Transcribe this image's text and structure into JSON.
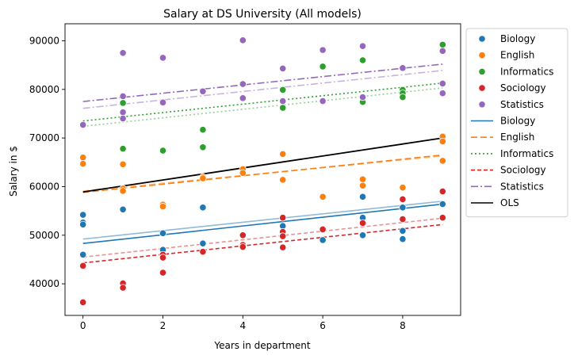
{
  "chart_data": {
    "type": "scatter",
    "title": "Salary at DS University (All models)",
    "xlabel": "Years in department",
    "ylabel": "Salary in $",
    "xlim": [
      -0.45,
      9.45
    ],
    "ylim": [
      33500,
      93500
    ],
    "xticks": [
      0,
      2,
      4,
      6,
      8
    ],
    "yticks": [
      40000,
      50000,
      60000,
      70000,
      80000,
      90000
    ],
    "ytick_labels": [
      "40000",
      "50000",
      "60000",
      "70000",
      "80000",
      "90000"
    ],
    "xtick_labels": [
      "0",
      "2",
      "4",
      "6",
      "8"
    ],
    "legend_position": "outside upper right",
    "colors": {
      "Biology": "#1f77b4",
      "English": "#ff7f0e",
      "Informatics": "#2ca02c",
      "Sociology": "#d62728",
      "Statistics": "#9467bd",
      "OLS": "#000000"
    },
    "scatter_series": [
      {
        "name": "Biology",
        "points": [
          [
            0,
            54200
          ],
          [
            0,
            52600
          ],
          [
            0,
            52200
          ],
          [
            0,
            46000
          ],
          [
            1,
            55300
          ],
          [
            2,
            50400
          ],
          [
            2,
            47000
          ],
          [
            3,
            55700
          ],
          [
            3,
            48300
          ],
          [
            5,
            51900
          ],
          [
            5,
            47600
          ],
          [
            6,
            49000
          ],
          [
            7,
            57900
          ],
          [
            7,
            53600
          ],
          [
            7,
            50000
          ],
          [
            8,
            55700
          ],
          [
            8,
            50900
          ],
          [
            8,
            49200
          ],
          [
            9,
            56400
          ]
        ]
      },
      {
        "name": "English",
        "points": [
          [
            0,
            66000
          ],
          [
            0,
            64700
          ],
          [
            1,
            64600
          ],
          [
            1,
            59600
          ],
          [
            1,
            59100
          ],
          [
            2,
            56300
          ],
          [
            2,
            55900
          ],
          [
            3,
            62000
          ],
          [
            3,
            61700
          ],
          [
            4,
            63600
          ],
          [
            4,
            62800
          ],
          [
            5,
            66700
          ],
          [
            5,
            61400
          ],
          [
            6,
            57900
          ],
          [
            7,
            61500
          ],
          [
            7,
            60200
          ],
          [
            8,
            59800
          ],
          [
            9,
            70300
          ],
          [
            9,
            69300
          ],
          [
            9,
            65300
          ]
        ]
      },
      {
        "name": "Informatics",
        "points": [
          [
            1,
            77200
          ],
          [
            1,
            67800
          ],
          [
            2,
            67400
          ],
          [
            3,
            71700
          ],
          [
            3,
            68100
          ],
          [
            4,
            78300
          ],
          [
            5,
            79900
          ],
          [
            5,
            76200
          ],
          [
            6,
            84700
          ],
          [
            7,
            86000
          ],
          [
            7,
            77400
          ],
          [
            8,
            84400
          ],
          [
            8,
            79900
          ],
          [
            8,
            79200
          ],
          [
            8,
            78400
          ],
          [
            9,
            89200
          ]
        ]
      },
      {
        "name": "Sociology",
        "points": [
          [
            0,
            43700
          ],
          [
            0,
            36200
          ],
          [
            1,
            40100
          ],
          [
            1,
            39200
          ],
          [
            2,
            46000
          ],
          [
            2,
            45400
          ],
          [
            2,
            42300
          ],
          [
            3,
            46600
          ],
          [
            4,
            50000
          ],
          [
            4,
            48000
          ],
          [
            4,
            47600
          ],
          [
            5,
            53600
          ],
          [
            5,
            50700
          ],
          [
            5,
            49800
          ],
          [
            5,
            47500
          ],
          [
            6,
            51200
          ],
          [
            7,
            52500
          ],
          [
            8,
            57400
          ],
          [
            8,
            53300
          ],
          [
            9,
            59000
          ],
          [
            9,
            53600
          ]
        ]
      },
      {
        "name": "Statistics",
        "points": [
          [
            0,
            72700
          ],
          [
            1,
            87500
          ],
          [
            1,
            78600
          ],
          [
            1,
            75300
          ],
          [
            1,
            74000
          ],
          [
            2,
            86500
          ],
          [
            2,
            77300
          ],
          [
            3,
            79600
          ],
          [
            4,
            90100
          ],
          [
            4,
            81100
          ],
          [
            4,
            78200
          ],
          [
            5,
            84300
          ],
          [
            5,
            77600
          ],
          [
            6,
            88100
          ],
          [
            6,
            77600
          ],
          [
            7,
            88900
          ],
          [
            7,
            78400
          ],
          [
            8,
            84400
          ],
          [
            9,
            87900
          ],
          [
            9,
            81200
          ],
          [
            9,
            79200
          ]
        ]
      }
    ],
    "line_series": [
      {
        "name": "Biology",
        "style": "solid",
        "points": [
          [
            0,
            48300
          ],
          [
            9,
            56400
          ]
        ]
      },
      {
        "name": "English",
        "style": "dashed",
        "points": [
          [
            0,
            58800
          ],
          [
            9,
            66500
          ]
        ]
      },
      {
        "name": "Informatics",
        "style": "dotted",
        "points": [
          [
            0,
            73500
          ],
          [
            9,
            81300
          ]
        ]
      },
      {
        "name": "Sociology",
        "style": "dashed-fine",
        "points": [
          [
            0,
            44300
          ],
          [
            9,
            52200
          ]
        ]
      },
      {
        "name": "Statistics",
        "style": "dashdot",
        "points": [
          [
            0,
            77500
          ],
          [
            9,
            85200
          ]
        ]
      },
      {
        "name": "OLS",
        "style": "solid-black",
        "points": [
          [
            0,
            58900
          ],
          [
            9,
            70000
          ]
        ]
      }
    ],
    "faint_lines": [
      {
        "group": "Biology",
        "style": "solid",
        "points": [
          [
            0,
            49200
          ],
          [
            9,
            57000
          ]
        ]
      },
      {
        "group": "English",
        "style": "dashed",
        "points": [
          [
            0,
            59100
          ],
          [
            9,
            66300
          ]
        ]
      },
      {
        "group": "Informatics",
        "style": "dotted",
        "points": [
          [
            0,
            72400
          ],
          [
            9,
            80300
          ]
        ]
      },
      {
        "group": "Sociology",
        "style": "dashed-fine",
        "points": [
          [
            0,
            45500
          ],
          [
            9,
            53500
          ]
        ]
      },
      {
        "group": "Statistics",
        "style": "dashdot",
        "points": [
          [
            0,
            76100
          ],
          [
            9,
            83900
          ]
        ]
      }
    ],
    "legend": [
      {
        "label": "Biology",
        "kind": "marker",
        "group": "Biology"
      },
      {
        "label": "English",
        "kind": "marker",
        "group": "English"
      },
      {
        "label": "Informatics",
        "kind": "marker",
        "group": "Informatics"
      },
      {
        "label": "Sociology",
        "kind": "marker",
        "group": "Sociology"
      },
      {
        "label": "Statistics",
        "kind": "marker",
        "group": "Statistics"
      },
      {
        "label": "Biology",
        "kind": "line",
        "group": "Biology",
        "style": "solid"
      },
      {
        "label": "English",
        "kind": "line",
        "group": "English",
        "style": "dashed"
      },
      {
        "label": "Informatics",
        "kind": "line",
        "group": "Informatics",
        "style": "dotted"
      },
      {
        "label": "Sociology",
        "kind": "line",
        "group": "Sociology",
        "style": "dashed-fine"
      },
      {
        "label": "Statistics",
        "kind": "line",
        "group": "Statistics",
        "style": "dashdot"
      },
      {
        "label": "OLS",
        "kind": "line",
        "group": "OLS",
        "style": "solid-black"
      }
    ]
  }
}
